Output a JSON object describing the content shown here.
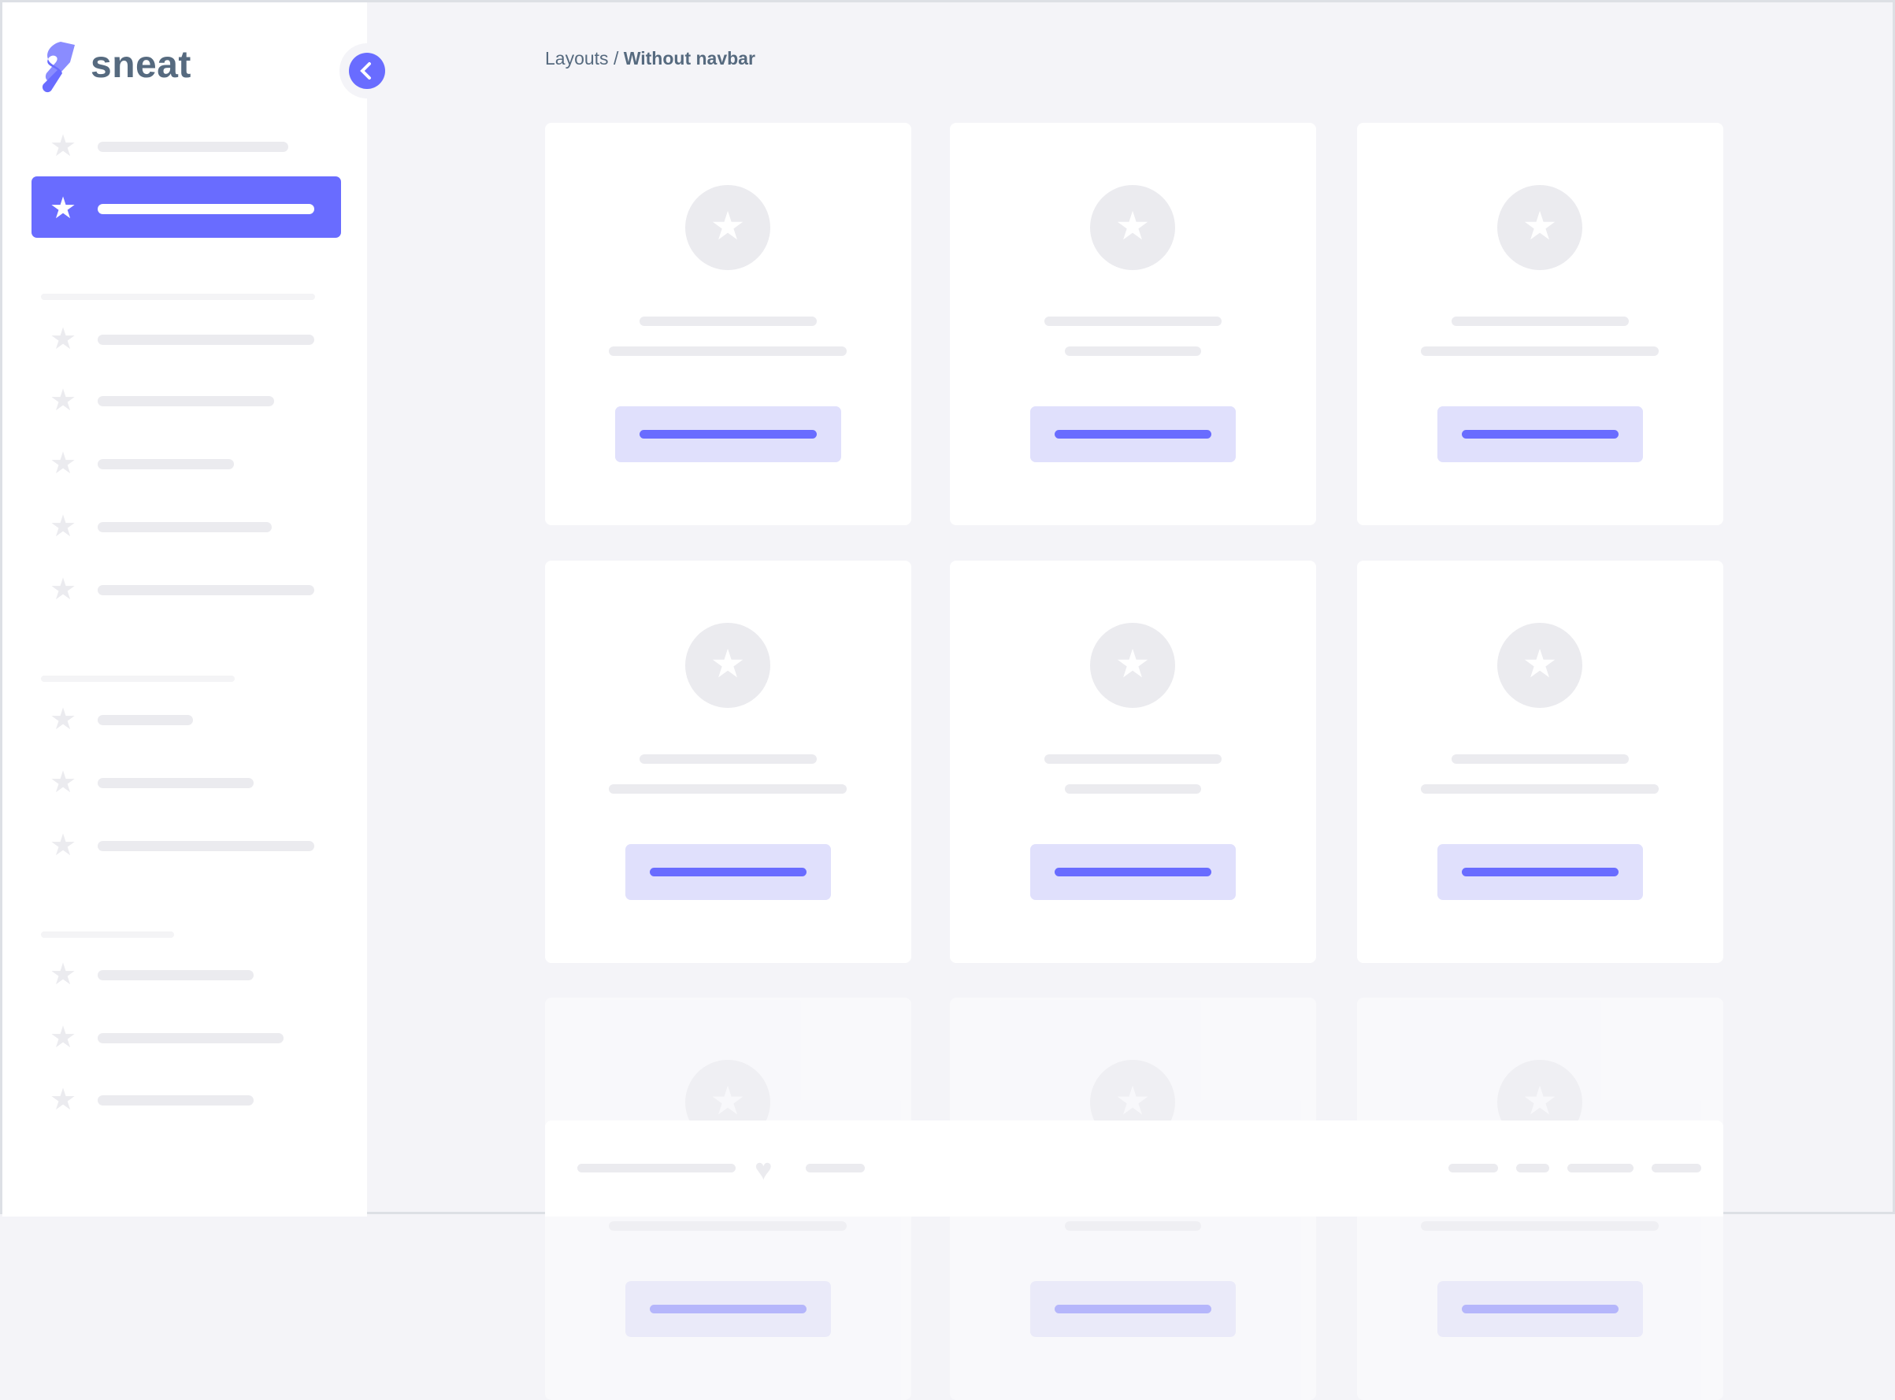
{
  "brand": {
    "name": "sneat",
    "accent": "#696cff"
  },
  "breadcrumb": {
    "parent": "Layouts",
    "separator": " / ",
    "current": "Without navbar"
  },
  "sidebar": {
    "collapse_icon": "chevron-left-icon",
    "item_icon": "star-icon",
    "active_index": 1
  },
  "cards": {
    "icon": "star-icon",
    "rows": 3,
    "columns": 3
  },
  "footer": {
    "icon": "heart-icon"
  }
}
